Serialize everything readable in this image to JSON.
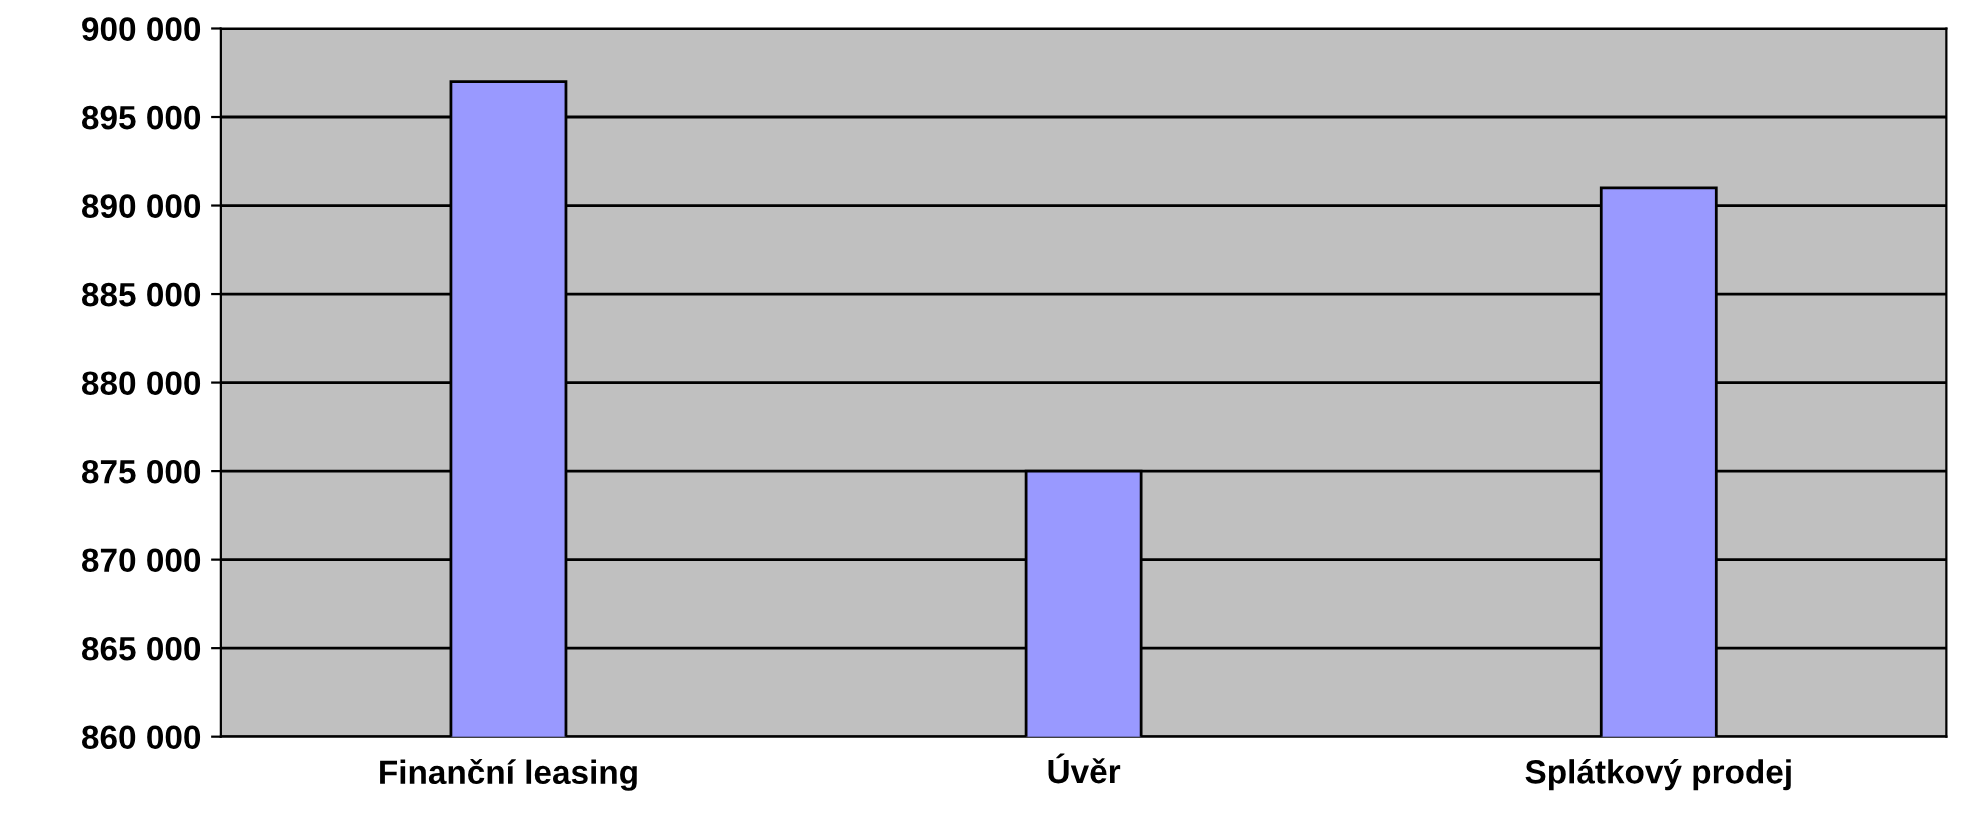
{
  "chart_data": {
    "type": "bar",
    "categories": [
      "Finanční leasing",
      "Úvěr",
      "Splátkový prodej"
    ],
    "values": [
      897000,
      875000,
      891000
    ],
    "color": "#9999ff",
    "ylim": [
      860000,
      900000
    ],
    "yticks": [
      {
        "value": 860000,
        "label": "860 000"
      },
      {
        "value": 865000,
        "label": "865 000"
      },
      {
        "value": 870000,
        "label": "870 000"
      },
      {
        "value": 875000,
        "label": "875 000"
      },
      {
        "value": 880000,
        "label": "880 000"
      },
      {
        "value": 885000,
        "label": "885 000"
      },
      {
        "value": 890000,
        "label": "890 000"
      },
      {
        "value": 895000,
        "label": "895 000"
      },
      {
        "value": 900000,
        "label": "900 000"
      }
    ],
    "grid": "y",
    "legend": false
  }
}
